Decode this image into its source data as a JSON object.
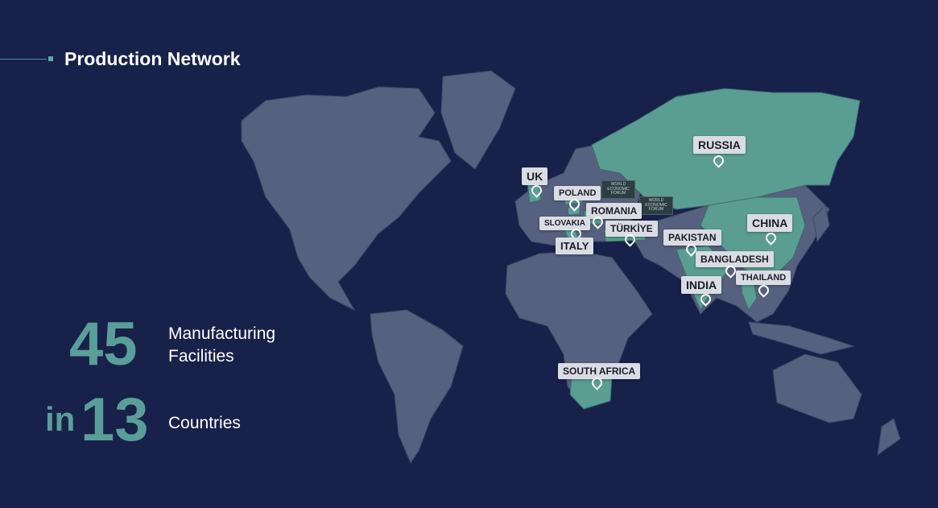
{
  "title": "Production Network",
  "stats": {
    "facilities_number": "45",
    "facilities_label": "Manufacturing Facilities",
    "in_label": "in",
    "countries_number": "13",
    "countries_label": "Countries"
  },
  "countries": {
    "russia": "RUSSIA",
    "uk": "UK",
    "poland": "POLAND",
    "romania": "ROMANIA",
    "slovakia": "SLOVAKIA",
    "turkiye": "TÜRKİYE",
    "italy": "ITALY",
    "pakistan": "PAKISTAN",
    "china": "CHINA",
    "bangladesh": "BANGLADESH",
    "india": "INDIA",
    "thailand": "THAILAND",
    "south_africa": "SOUTH AFRICA"
  },
  "badges": {
    "wef_1": "WORLD ECONOMIC FORUM",
    "wef_2": "WORLD ECONOMIC FORUM"
  },
  "colors": {
    "background": "#18214a",
    "land": "#56607f",
    "highlight": "#5a9e93",
    "accent": "#5a9e99"
  }
}
